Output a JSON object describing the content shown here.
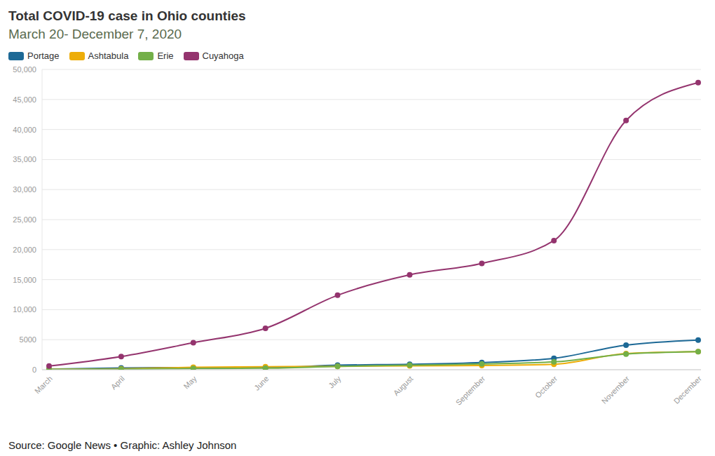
{
  "chart_data": {
    "type": "line",
    "title": "Total COVID-19 case in Ohio counties",
    "subtitle": "March 20- December 7, 2020",
    "source": "Source: Google News • Graphic: Ashley Johnson",
    "categories": [
      "March",
      "April",
      "May",
      "June",
      "July",
      "August",
      "September",
      "October",
      "November",
      "December"
    ],
    "series": [
      {
        "name": "Portage",
        "color": "#1d6996",
        "values": [
          100,
          300,
          350,
          350,
          750,
          900,
          1200,
          1900,
          4100,
          4950
        ]
      },
      {
        "name": "Ashtabula",
        "color": "#edad08",
        "values": [
          50,
          150,
          400,
          500,
          550,
          650,
          700,
          900,
          2700,
          3000
        ]
      },
      {
        "name": "Erie",
        "color": "#73af48",
        "values": [
          50,
          100,
          200,
          250,
          550,
          750,
          950,
          1300,
          2600,
          3000
        ]
      },
      {
        "name": "Cuyahoga",
        "color": "#94346e",
        "values": [
          600,
          2200,
          4500,
          6900,
          12400,
          15800,
          17700,
          21500,
          41500,
          47800
        ]
      }
    ],
    "ylim": [
      0,
      50000
    ],
    "yticks": [
      0,
      5000,
      {
        "value": 10000,
        "label": "10,000"
      },
      {
        "value": 15000,
        "label": "15,000"
      },
      {
        "value": 20000,
        "label": "20,000"
      },
      {
        "value": 25000,
        "label": "25,000"
      },
      {
        "value": 30000,
        "label": "30,000"
      },
      {
        "value": 35000,
        "label": "35,000"
      },
      {
        "value": 40000,
        "label": "40,000"
      },
      {
        "value": 45000,
        "label": "45,000"
      },
      {
        "value": 50000,
        "label": "50,000"
      }
    ],
    "grid": true,
    "legend": "top",
    "marker": "circle"
  }
}
